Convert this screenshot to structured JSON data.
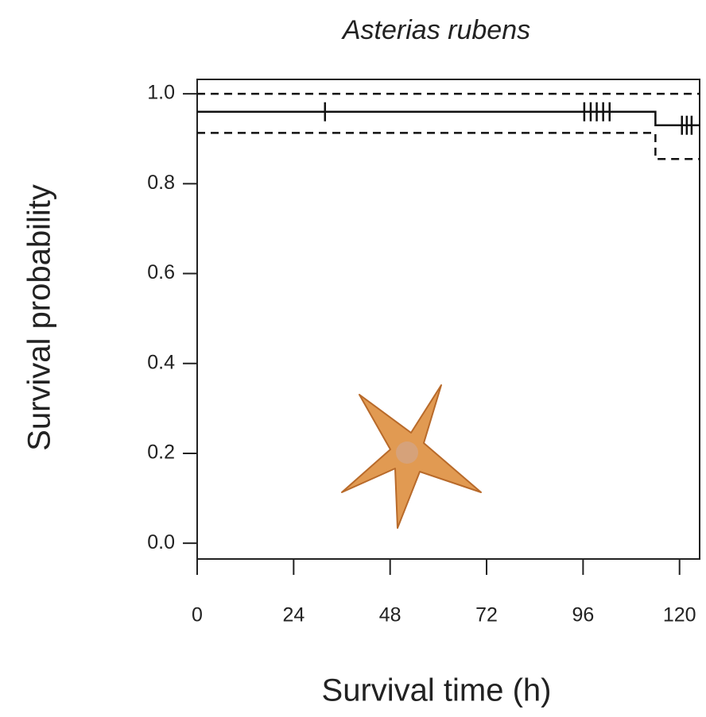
{
  "chart_data": {
    "type": "step",
    "title": "Asterias rubens",
    "x_label": "Survival time (h)",
    "y_label": "Survival probability",
    "x": [
      0,
      114,
      125
    ],
    "series": [
      {
        "color": "#111111",
        "style": "solid",
        "values": [
          0.96,
          0.93,
          0.93
        ]
      },
      {
        "color": "#111111",
        "style": "dashed",
        "values": [
          1.0,
          1.0,
          1.0
        ]
      },
      {
        "color": "#111111",
        "style": "dashed",
        "values": [
          0.913,
          0.855,
          0.855
        ]
      }
    ],
    "censor_x": [
      31.8,
      96.3,
      97.9,
      99.4,
      101,
      102.6,
      120.6,
      121.8,
      123
    ],
    "censor_values": [
      0.96,
      0.96,
      0.96,
      0.96,
      0.96,
      0.96,
      0.93,
      0.93,
      0.93
    ],
    "xlim": [
      0,
      125
    ],
    "ylim": [
      -0.035,
      1.032
    ],
    "xticks": [
      0,
      24,
      48,
      72,
      96,
      120
    ],
    "yticks": [
      {
        "value": 0,
        "label": "0.0"
      },
      {
        "value": 0.2,
        "label": "0.2"
      },
      {
        "value": 0.4,
        "label": "0.4"
      },
      {
        "value": 0.6,
        "label": "0.6"
      },
      {
        "value": 0.8,
        "label": "0.8"
      },
      {
        "value": 1.0,
        "label": "1.0"
      }
    ]
  }
}
